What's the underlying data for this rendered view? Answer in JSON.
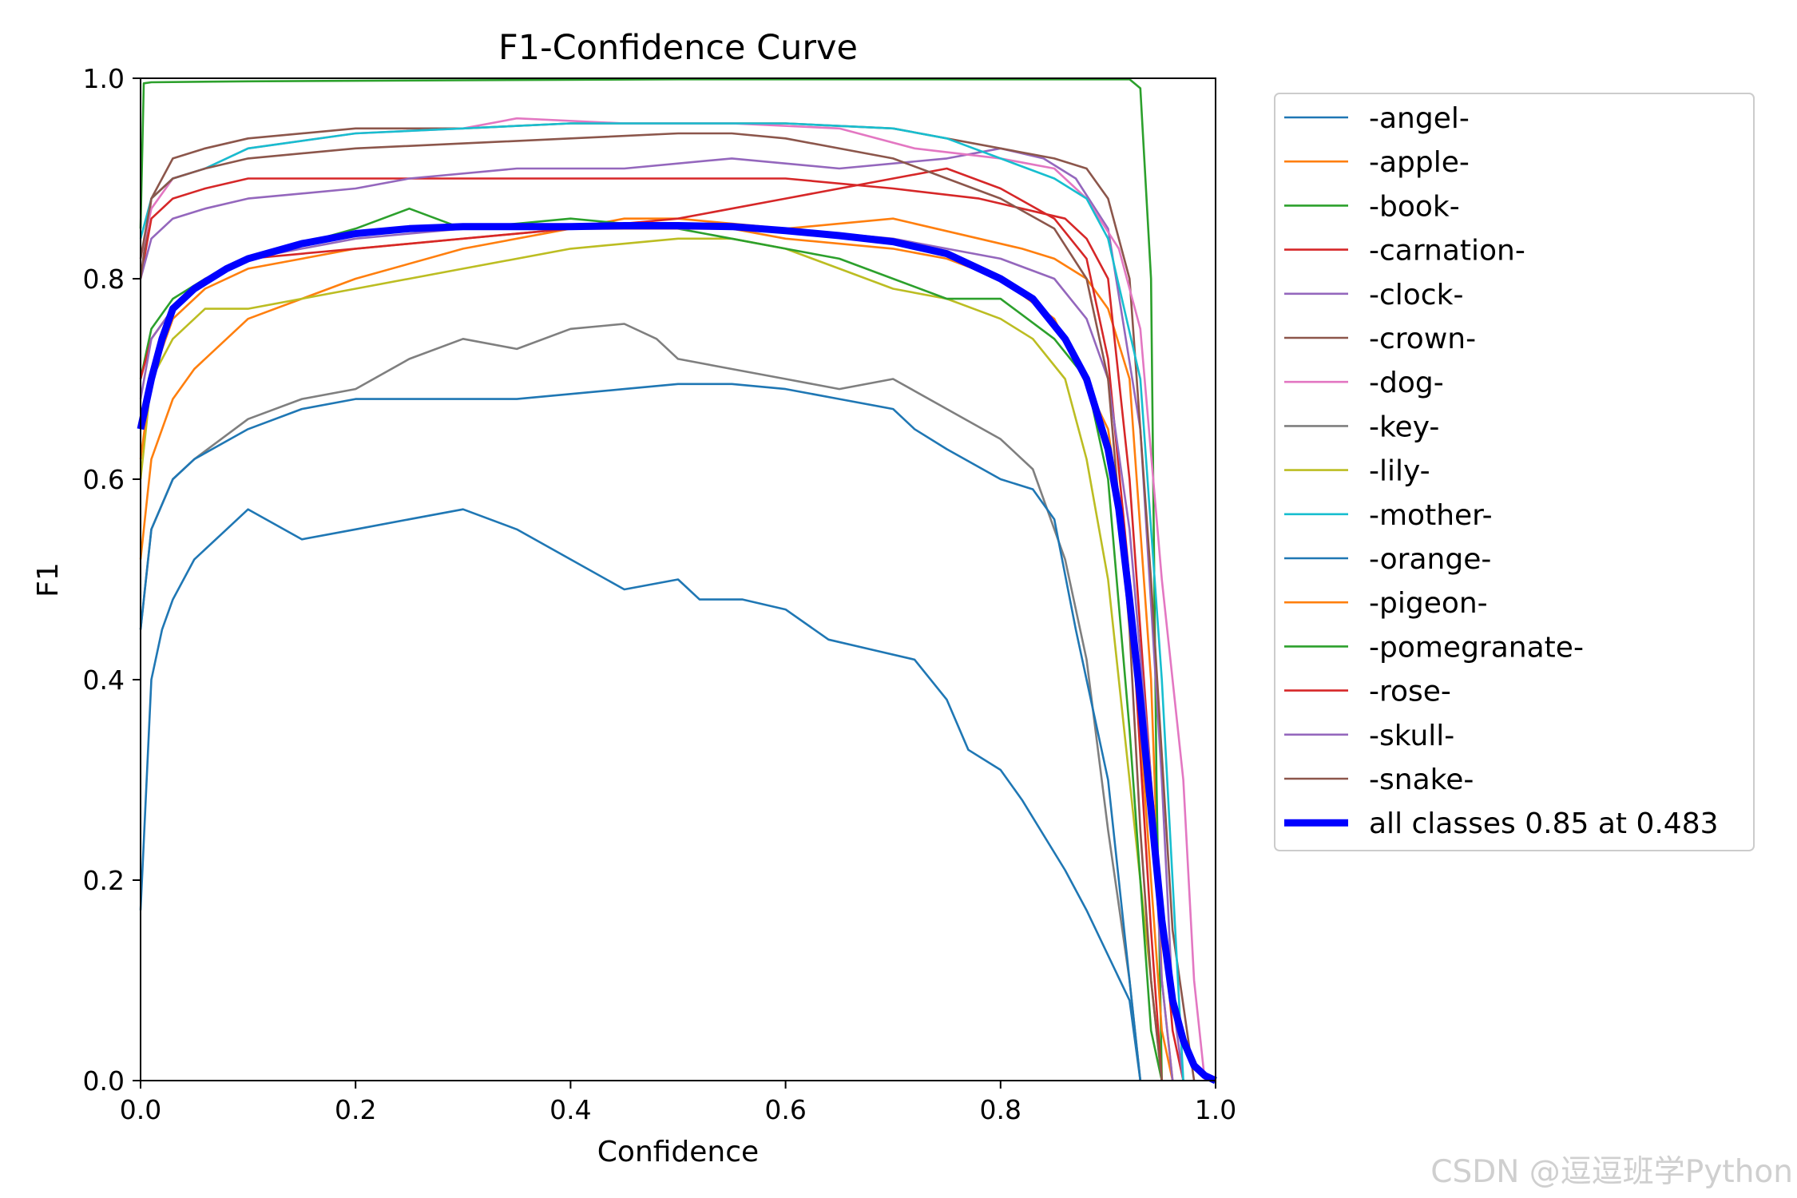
{
  "chart_data": {
    "type": "line",
    "title": "F1-Confidence Curve",
    "xlabel": "Confidence",
    "ylabel": "F1",
    "xlim": [
      0.0,
      1.0
    ],
    "ylim": [
      0.0,
      1.0
    ],
    "xticks": [
      "0.0",
      "0.2",
      "0.4",
      "0.6",
      "0.8",
      "1.0"
    ],
    "yticks": [
      "0.0",
      "0.2",
      "0.4",
      "0.6",
      "0.8",
      "1.0"
    ],
    "grid": false,
    "legend_position": "outside-right",
    "series": [
      {
        "name": "-angel-",
        "color": "#1f77b4",
        "x": [
          0,
          0.01,
          0.02,
          0.03,
          0.05,
          0.08,
          0.1,
          0.15,
          0.2,
          0.25,
          0.3,
          0.35,
          0.4,
          0.45,
          0.5,
          0.52,
          0.56,
          0.6,
          0.64,
          0.68,
          0.72,
          0.75,
          0.77,
          0.8,
          0.82,
          0.86,
          0.88,
          0.92,
          0.93
        ],
        "y": [
          0.17,
          0.4,
          0.45,
          0.48,
          0.52,
          0.55,
          0.57,
          0.54,
          0.55,
          0.56,
          0.57,
          0.55,
          0.52,
          0.49,
          0.5,
          0.48,
          0.48,
          0.47,
          0.44,
          0.43,
          0.42,
          0.38,
          0.33,
          0.31,
          0.28,
          0.21,
          0.17,
          0.08,
          0.0
        ]
      },
      {
        "name": "-apple-",
        "color": "#ff7f0e",
        "x": [
          0,
          0.01,
          0.03,
          0.05,
          0.1,
          0.2,
          0.3,
          0.4,
          0.45,
          0.5,
          0.6,
          0.7,
          0.78,
          0.82,
          0.85,
          0.88,
          0.9,
          0.92,
          0.94,
          0.95,
          0.96
        ],
        "y": [
          0.52,
          0.62,
          0.68,
          0.71,
          0.76,
          0.8,
          0.83,
          0.85,
          0.86,
          0.86,
          0.85,
          0.86,
          0.84,
          0.83,
          0.82,
          0.8,
          0.77,
          0.7,
          0.4,
          0.1,
          0.0
        ]
      },
      {
        "name": "-book-",
        "color": "#2ca02c",
        "x": [
          0,
          0.003,
          0.01,
          0.1,
          0.3,
          0.5,
          0.7,
          0.85,
          0.92,
          0.93,
          0.94,
          0.945,
          0.95
        ],
        "y": [
          0.85,
          0.995,
          0.996,
          0.997,
          0.998,
          0.999,
          0.999,
          0.999,
          0.999,
          0.99,
          0.8,
          0.3,
          0.0
        ]
      },
      {
        "name": "-carnation-",
        "color": "#d62728",
        "x": [
          0,
          0.01,
          0.03,
          0.06,
          0.1,
          0.2,
          0.3,
          0.4,
          0.5,
          0.6,
          0.7,
          0.78,
          0.82,
          0.86,
          0.88,
          0.9,
          0.92,
          0.94,
          0.96,
          0.97
        ],
        "y": [
          0.8,
          0.86,
          0.88,
          0.89,
          0.9,
          0.9,
          0.9,
          0.9,
          0.9,
          0.9,
          0.89,
          0.88,
          0.87,
          0.86,
          0.84,
          0.8,
          0.6,
          0.3,
          0.05,
          0.0
        ]
      },
      {
        "name": "-clock-",
        "color": "#9467bd",
        "x": [
          0,
          0.01,
          0.03,
          0.06,
          0.1,
          0.2,
          0.25,
          0.35,
          0.45,
          0.55,
          0.65,
          0.75,
          0.8,
          0.84,
          0.87,
          0.9,
          0.93,
          0.95,
          0.96,
          0.97
        ],
        "y": [
          0.8,
          0.84,
          0.86,
          0.87,
          0.88,
          0.89,
          0.9,
          0.91,
          0.91,
          0.92,
          0.91,
          0.92,
          0.93,
          0.92,
          0.9,
          0.85,
          0.65,
          0.3,
          0.08,
          0.0
        ]
      },
      {
        "name": "-crown-",
        "color": "#8c564b",
        "x": [
          0,
          0.01,
          0.03,
          0.06,
          0.1,
          0.2,
          0.3,
          0.4,
          0.5,
          0.6,
          0.7,
          0.8,
          0.85,
          0.88,
          0.9,
          0.92,
          0.94,
          0.96,
          0.98
        ],
        "y": [
          0.8,
          0.88,
          0.92,
          0.93,
          0.94,
          0.95,
          0.95,
          0.955,
          0.955,
          0.955,
          0.95,
          0.93,
          0.92,
          0.91,
          0.88,
          0.8,
          0.5,
          0.15,
          0.0
        ]
      },
      {
        "name": "-dog-",
        "color": "#e377c2",
        "x": [
          0,
          0.01,
          0.03,
          0.06,
          0.1,
          0.2,
          0.3,
          0.35,
          0.45,
          0.55,
          0.65,
          0.72,
          0.8,
          0.85,
          0.88,
          0.91,
          0.93,
          0.95,
          0.97,
          0.98,
          0.99
        ],
        "y": [
          0.82,
          0.87,
          0.9,
          0.91,
          0.93,
          0.945,
          0.95,
          0.96,
          0.955,
          0.955,
          0.95,
          0.93,
          0.92,
          0.91,
          0.88,
          0.83,
          0.75,
          0.5,
          0.3,
          0.1,
          0.0
        ]
      },
      {
        "name": "-key-",
        "color": "#7f7f7f",
        "x": [
          0,
          0.01,
          0.03,
          0.05,
          0.1,
          0.15,
          0.2,
          0.25,
          0.3,
          0.35,
          0.4,
          0.45,
          0.48,
          0.5,
          0.55,
          0.6,
          0.65,
          0.7,
          0.75,
          0.8,
          0.83,
          0.86,
          0.88,
          0.9,
          0.92,
          0.93
        ],
        "y": [
          0.45,
          0.55,
          0.6,
          0.62,
          0.66,
          0.68,
          0.69,
          0.72,
          0.74,
          0.73,
          0.75,
          0.755,
          0.74,
          0.72,
          0.71,
          0.7,
          0.69,
          0.7,
          0.67,
          0.64,
          0.61,
          0.52,
          0.42,
          0.25,
          0.1,
          0.0
        ]
      },
      {
        "name": "-lily-",
        "color": "#bcbd22",
        "x": [
          0,
          0.01,
          0.03,
          0.06,
          0.1,
          0.2,
          0.3,
          0.4,
          0.5,
          0.55,
          0.6,
          0.65,
          0.7,
          0.75,
          0.8,
          0.83,
          0.86,
          0.88,
          0.9,
          0.92,
          0.94,
          0.95
        ],
        "y": [
          0.6,
          0.7,
          0.74,
          0.77,
          0.77,
          0.79,
          0.81,
          0.83,
          0.84,
          0.84,
          0.83,
          0.81,
          0.79,
          0.78,
          0.76,
          0.74,
          0.7,
          0.62,
          0.5,
          0.3,
          0.1,
          0.0
        ]
      },
      {
        "name": "-mother-",
        "color": "#17becf",
        "x": [
          0,
          0.01,
          0.03,
          0.06,
          0.1,
          0.2,
          0.3,
          0.4,
          0.5,
          0.55,
          0.6,
          0.7,
          0.75,
          0.8,
          0.85,
          0.88,
          0.9,
          0.93,
          0.95,
          0.97
        ],
        "y": [
          0.84,
          0.88,
          0.9,
          0.91,
          0.93,
          0.945,
          0.95,
          0.955,
          0.955,
          0.955,
          0.955,
          0.95,
          0.94,
          0.92,
          0.9,
          0.88,
          0.84,
          0.7,
          0.4,
          0.0
        ]
      },
      {
        "name": "-orange-",
        "color": "#1f77b4",
        "x": [
          0,
          0.01,
          0.03,
          0.05,
          0.1,
          0.15,
          0.2,
          0.25,
          0.3,
          0.35,
          0.4,
          0.45,
          0.5,
          0.55,
          0.6,
          0.65,
          0.7,
          0.72,
          0.75,
          0.8,
          0.83,
          0.85,
          0.87,
          0.9,
          0.92,
          0.93
        ],
        "y": [
          0.45,
          0.55,
          0.6,
          0.62,
          0.65,
          0.67,
          0.68,
          0.68,
          0.68,
          0.68,
          0.685,
          0.69,
          0.695,
          0.695,
          0.69,
          0.68,
          0.67,
          0.65,
          0.63,
          0.6,
          0.59,
          0.56,
          0.45,
          0.3,
          0.1,
          0.0
        ]
      },
      {
        "name": "-pigeon-",
        "color": "#ff7f0e",
        "x": [
          0,
          0.01,
          0.03,
          0.06,
          0.1,
          0.2,
          0.3,
          0.4,
          0.5,
          0.55,
          0.6,
          0.7,
          0.75,
          0.8,
          0.85,
          0.9,
          0.92,
          0.94,
          0.95,
          0.96
        ],
        "y": [
          0.62,
          0.7,
          0.76,
          0.79,
          0.81,
          0.83,
          0.84,
          0.85,
          0.85,
          0.85,
          0.84,
          0.83,
          0.82,
          0.8,
          0.76,
          0.65,
          0.5,
          0.2,
          0.05,
          0.0
        ]
      },
      {
        "name": "-pomegranate-",
        "color": "#2ca02c",
        "x": [
          0,
          0.01,
          0.03,
          0.06,
          0.1,
          0.2,
          0.25,
          0.3,
          0.4,
          0.5,
          0.6,
          0.65,
          0.7,
          0.75,
          0.8,
          0.85,
          0.88,
          0.9,
          0.92,
          0.94,
          0.95
        ],
        "y": [
          0.7,
          0.75,
          0.78,
          0.8,
          0.82,
          0.85,
          0.87,
          0.85,
          0.86,
          0.85,
          0.83,
          0.82,
          0.8,
          0.78,
          0.78,
          0.74,
          0.7,
          0.6,
          0.35,
          0.05,
          0.0
        ]
      },
      {
        "name": "-rose-",
        "color": "#d62728",
        "x": [
          0,
          0.01,
          0.03,
          0.06,
          0.1,
          0.2,
          0.3,
          0.4,
          0.5,
          0.6,
          0.7,
          0.75,
          0.8,
          0.85,
          0.88,
          0.9,
          0.92,
          0.94,
          0.95
        ],
        "y": [
          0.7,
          0.74,
          0.77,
          0.8,
          0.82,
          0.83,
          0.84,
          0.85,
          0.86,
          0.88,
          0.9,
          0.91,
          0.89,
          0.86,
          0.82,
          0.72,
          0.5,
          0.15,
          0.0
        ]
      },
      {
        "name": "-skull-",
        "color": "#9467bd",
        "x": [
          0,
          0.01,
          0.03,
          0.06,
          0.1,
          0.2,
          0.3,
          0.4,
          0.5,
          0.6,
          0.7,
          0.75,
          0.8,
          0.85,
          0.88,
          0.9,
          0.92,
          0.94,
          0.95,
          0.96
        ],
        "y": [
          0.68,
          0.74,
          0.77,
          0.8,
          0.82,
          0.84,
          0.85,
          0.85,
          0.85,
          0.85,
          0.84,
          0.83,
          0.82,
          0.8,
          0.76,
          0.7,
          0.55,
          0.3,
          0.1,
          0.0
        ]
      },
      {
        "name": "-snake-",
        "color": "#8c564b",
        "x": [
          0,
          0.01,
          0.03,
          0.06,
          0.1,
          0.2,
          0.3,
          0.4,
          0.5,
          0.55,
          0.6,
          0.7,
          0.75,
          0.8,
          0.85,
          0.88,
          0.9,
          0.92,
          0.93,
          0.94,
          0.95
        ],
        "y": [
          0.82,
          0.88,
          0.9,
          0.91,
          0.92,
          0.93,
          0.935,
          0.94,
          0.945,
          0.945,
          0.94,
          0.92,
          0.9,
          0.88,
          0.85,
          0.8,
          0.7,
          0.45,
          0.25,
          0.1,
          0.0
        ]
      },
      {
        "name": "all classes 0.85 at 0.483",
        "color": "#0000ff",
        "bold": true,
        "x": [
          0,
          0.01,
          0.02,
          0.03,
          0.05,
          0.08,
          0.1,
          0.15,
          0.2,
          0.25,
          0.3,
          0.35,
          0.4,
          0.45,
          0.483,
          0.5,
          0.55,
          0.6,
          0.65,
          0.7,
          0.75,
          0.8,
          0.83,
          0.86,
          0.88,
          0.9,
          0.91,
          0.92,
          0.93,
          0.94,
          0.95,
          0.96,
          0.97,
          0.98,
          0.99,
          1.0
        ],
        "y": [
          0.65,
          0.7,
          0.74,
          0.77,
          0.79,
          0.81,
          0.82,
          0.835,
          0.845,
          0.85,
          0.852,
          0.852,
          0.852,
          0.853,
          0.853,
          0.853,
          0.852,
          0.848,
          0.843,
          0.837,
          0.825,
          0.8,
          0.78,
          0.74,
          0.7,
          0.63,
          0.57,
          0.48,
          0.38,
          0.27,
          0.16,
          0.08,
          0.04,
          0.015,
          0.005,
          0.0
        ]
      }
    ]
  },
  "watermark": "CSDN @逗逗班学Python"
}
